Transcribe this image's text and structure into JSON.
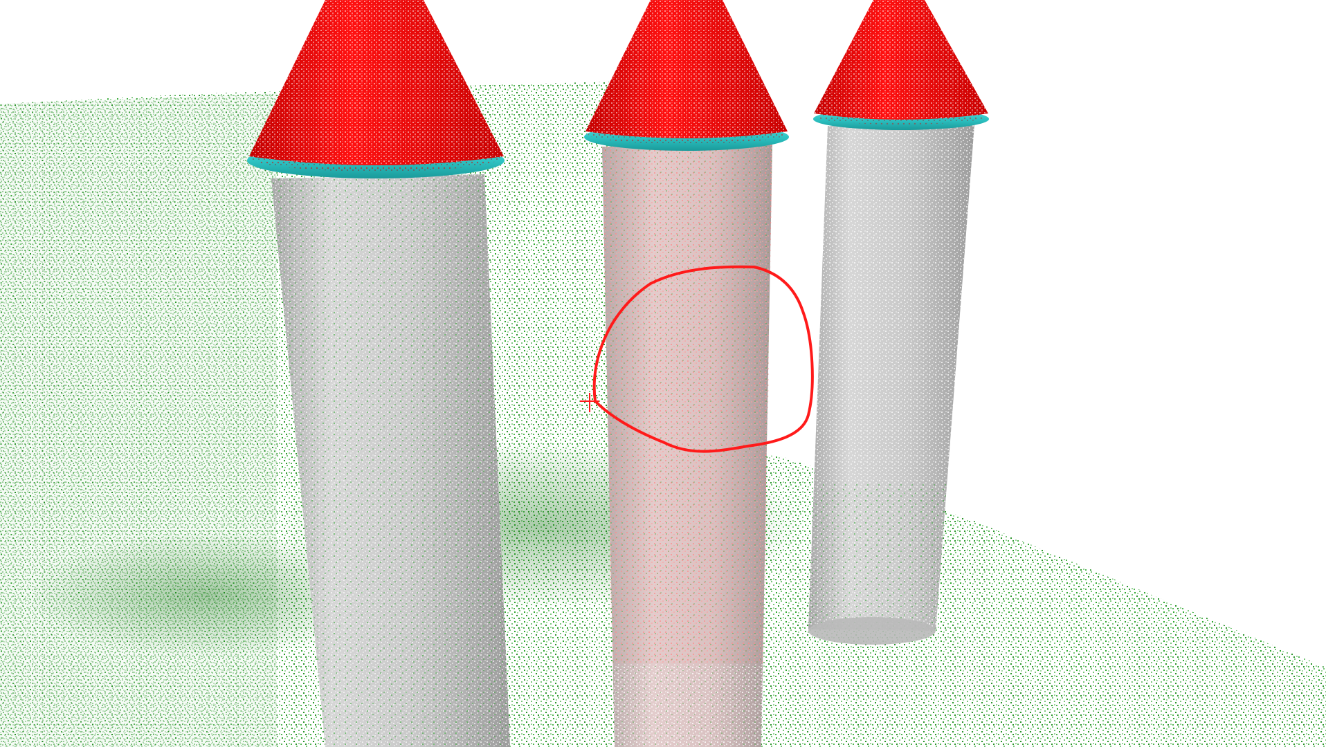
{
  "viewport": {
    "background_color": "#ffffff",
    "ground_point_color": "#1a9e1a",
    "ground_point_color_dark": "#0f7d0f"
  },
  "towers": [
    {
      "label": "",
      "cylinder_color": "#cfcfcf",
      "rim_color": "#2ec4c4",
      "cone_color": "#e00000",
      "highlighted": false
    },
    {
      "label": "",
      "cylinder_color": "#d8c4c4",
      "rim_color": "#2ec4c4",
      "cone_color": "#e00000",
      "highlighted": true
    },
    {
      "label": "",
      "cylinder_color": "#cfcfcf",
      "rim_color": "#2ec4c4",
      "cone_color": "#e00000",
      "highlighted": false
    }
  ],
  "annotation": {
    "shape": "freehand-circle",
    "stroke_color": "#ff1a1a",
    "cursor_marker": "crosshair-icon"
  }
}
